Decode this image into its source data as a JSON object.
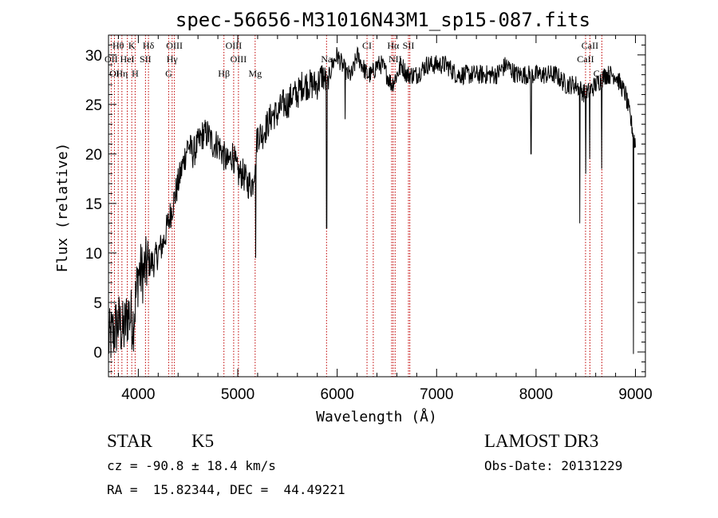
{
  "chart_data": {
    "type": "line",
    "title": "spec-56656-M31016N43M1_sp15-087.fits",
    "xlabel": "Wavelength (Å)",
    "ylabel": "Flux (relative)",
    "xlim": [
      3700,
      9100
    ],
    "ylim": [
      -2.5,
      32
    ],
    "xticks": [
      4000,
      5000,
      6000,
      7000,
      8000,
      9000
    ],
    "yticks": [
      0,
      5,
      10,
      15,
      20,
      25,
      30
    ],
    "series": [
      {
        "name": "spectrum",
        "x": [
          3700,
          3750,
          3800,
          3850,
          3900,
          3950,
          4000,
          4050,
          4100,
          4150,
          4200,
          4250,
          4300,
          4350,
          4400,
          4450,
          4500,
          4550,
          4600,
          4650,
          4700,
          4750,
          4800,
          4850,
          4900,
          4950,
          5000,
          5050,
          5100,
          5150,
          5200,
          5250,
          5300,
          5350,
          5400,
          5450,
          5500,
          5550,
          5600,
          5650,
          5700,
          5750,
          5800,
          5850,
          5900,
          5950,
          6000,
          6050,
          6100,
          6150,
          6200,
          6250,
          6300,
          6350,
          6400,
          6450,
          6500,
          6550,
          6600,
          6650,
          6700,
          6750,
          6800,
          6900,
          7000,
          7100,
          7200,
          7300,
          7400,
          7500,
          7600,
          7700,
          7800,
          7900,
          8000,
          8100,
          8200,
          8300,
          8400,
          8500,
          8600,
          8700,
          8800,
          8900,
          9000
        ],
        "y": [
          1,
          2,
          3,
          2,
          4,
          3,
          8,
          8,
          9,
          9,
          10,
          11,
          13,
          15,
          17,
          19,
          21,
          20,
          21,
          22,
          22,
          21,
          21,
          20,
          19,
          20,
          18,
          18,
          17,
          17,
          22,
          22,
          23,
          24,
          24,
          25,
          25,
          26,
          26,
          27,
          27,
          27,
          27,
          28,
          27,
          29,
          30,
          29,
          28,
          28,
          30,
          29,
          28,
          28,
          29,
          29,
          28,
          27,
          28,
          29,
          28,
          28,
          28,
          29,
          29,
          29,
          28,
          28,
          28,
          28,
          28,
          29,
          28,
          28,
          28,
          28,
          28,
          27,
          27,
          26,
          27,
          28,
          28,
          26,
          21
        ]
      }
    ],
    "dips": [
      {
        "x": 5180,
        "y": 9.5
      },
      {
        "x": 5895,
        "y": 12.5
      },
      {
        "x": 6080,
        "y": 23.5
      },
      {
        "x": 7950,
        "y": 20
      },
      {
        "x": 8440,
        "y": 13
      },
      {
        "x": 8500,
        "y": 18
      },
      {
        "x": 8540,
        "y": 19.5
      },
      {
        "x": 8660,
        "y": 18.5
      },
      {
        "x": 8980,
        "y": -0.2
      }
    ],
    "spectral_lines": [
      {
        "label": "Hθ",
        "x": 3798,
        "row": 0
      },
      {
        "label": "K",
        "x": 3934,
        "row": 0
      },
      {
        "label": "Hδ",
        "x": 4102,
        "row": 0
      },
      {
        "label": "OIII",
        "x": 4363,
        "row": 0
      },
      {
        "label": "OIII",
        "x": 4959,
        "row": 0
      },
      {
        "label": "CI",
        "x": 6300,
        "row": 0
      },
      {
        "label": "Hα",
        "x": 6563,
        "row": 0
      },
      {
        "label": "SII",
        "x": 6717,
        "row": 0
      },
      {
        "label": "CaII",
        "x": 8542,
        "row": 0
      },
      {
        "label": "OII",
        "x": 3727,
        "row": 1
      },
      {
        "label": "HeI",
        "x": 3889,
        "row": 1
      },
      {
        "label": "SII",
        "x": 4072,
        "row": 1
      },
      {
        "label": "Hγ",
        "x": 4340,
        "row": 1
      },
      {
        "label": "OIII",
        "x": 5007,
        "row": 1
      },
      {
        "label": "Na",
        "x": 5893,
        "row": 1
      },
      {
        "label": "NII",
        "x": 6583,
        "row": 1
      },
      {
        "label": "CaII",
        "x": 8498,
        "row": 1
      },
      {
        "label": "OI",
        "x": 3760,
        "row": 2
      },
      {
        "label": "Hη",
        "x": 3835,
        "row": 2
      },
      {
        "label": "H",
        "x": 3968,
        "row": 2
      },
      {
        "label": "G",
        "x": 4305,
        "row": 2
      },
      {
        "label": "Hβ",
        "x": 4861,
        "row": 2
      },
      {
        "label": "Mg",
        "x": 5175,
        "row": 2
      },
      {
        "label": "CaII",
        "x": 8662,
        "row": 2
      }
    ],
    "line_positions": [
      3727,
      3760,
      3798,
      3835,
      3889,
      3934,
      3968,
      4072,
      4102,
      4305,
      4340,
      4363,
      4861,
      4959,
      5007,
      5175,
      5893,
      6300,
      6363,
      6548,
      6563,
      6583,
      6717,
      6731,
      8498,
      8542,
      8662
    ]
  },
  "info": {
    "object_class": "STAR",
    "subclass": "K5",
    "survey": "LAMOST DR3",
    "redshift": "cz = -90.8 ± 18.4 km/s",
    "obs_date": "Obs-Date: 20131229",
    "coords": "RA =  15.82344, DEC =  44.49221"
  }
}
